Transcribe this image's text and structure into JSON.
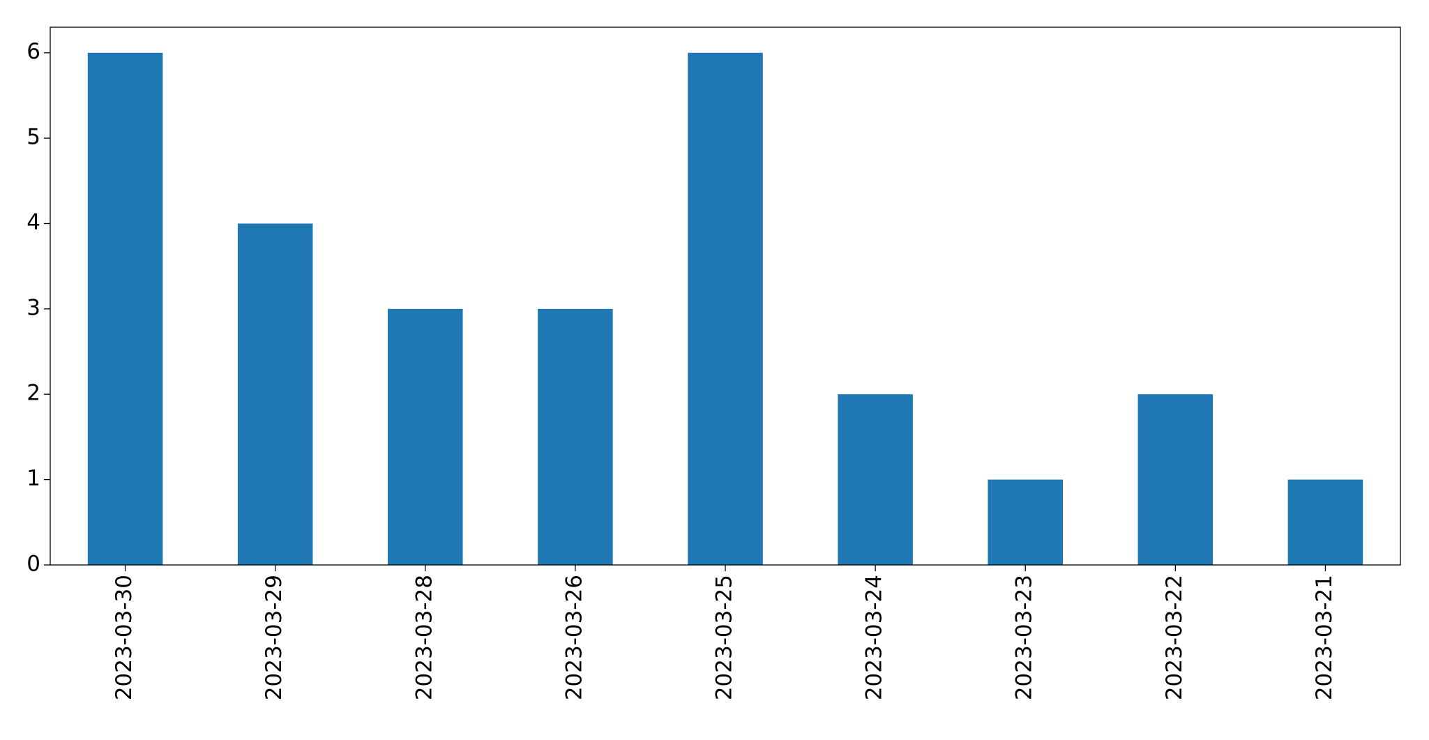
{
  "chart_data": {
    "type": "bar",
    "categories": [
      "2023-03-30",
      "2023-03-29",
      "2023-03-28",
      "2023-03-26",
      "2023-03-25",
      "2023-03-24",
      "2023-03-23",
      "2023-03-22",
      "2023-03-21"
    ],
    "values": [
      6,
      4,
      3,
      3,
      6,
      2,
      1,
      2,
      1
    ],
    "color": "#1f77b4",
    "ylim": [
      0,
      6.3
    ],
    "yticks": [
      0,
      1,
      2,
      3,
      4,
      5,
      6
    ],
    "grid": false
  }
}
